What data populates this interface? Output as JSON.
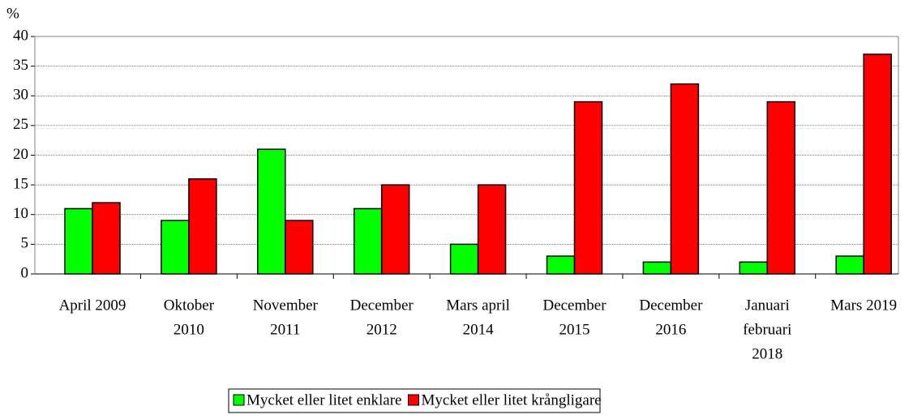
{
  "chart_data": {
    "type": "bar",
    "ylabel": "%",
    "categories": [
      [
        "April 2009"
      ],
      [
        "Oktober",
        "2010"
      ],
      [
        "November",
        "2011"
      ],
      [
        "December",
        "2012"
      ],
      [
        "Mars april",
        "2014"
      ],
      [
        "December",
        "2015"
      ],
      [
        "December",
        "2016"
      ],
      [
        "Januari",
        "februari",
        "2018"
      ],
      [
        "Mars 2019"
      ]
    ],
    "series": [
      {
        "name": "Mycket eller litet enklare",
        "color": "#00ff00",
        "values": [
          11,
          9,
          21,
          11,
          5,
          3,
          2,
          2,
          3
        ]
      },
      {
        "name": "Mycket eller litet krångligare",
        "color": "#ff0000",
        "values": [
          12,
          16,
          9,
          15,
          15,
          29,
          32,
          29,
          37
        ]
      }
    ],
    "ylim": [
      0,
      40
    ],
    "yticks": [
      0,
      5,
      10,
      15,
      20,
      25,
      30,
      35,
      40
    ],
    "grid": true,
    "legend": "bottom"
  }
}
